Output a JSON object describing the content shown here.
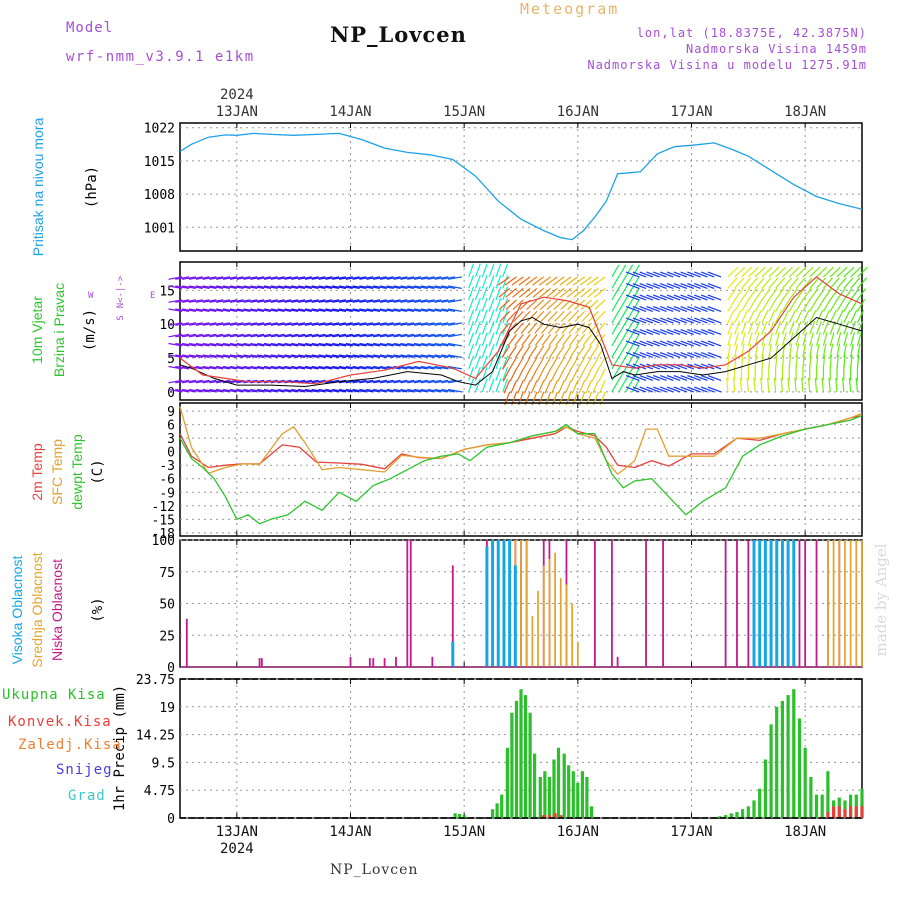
{
  "header": {
    "model_label": "Model",
    "model_name": "wrf-nmm_v3.9.1 e1km",
    "title": "NP_Lovcen",
    "meteogram_label": "Meteogram",
    "lonlat": "lon,lat (18.8375E, 42.3875N)",
    "altitude": "Nadmorska Visina 1459m",
    "model_altitude": "Nadmorska Visina u modelu 1275.91m",
    "bottom_title": "NP_Lovcen",
    "watermark": "made by Angel"
  },
  "colors": {
    "pressure": "#1ea1e8",
    "temp2m": "#e8403a",
    "sfc_temp": "#e0a030",
    "dewpt": "#2ec52e",
    "cloud_high": "#16a6e8",
    "cloud_mid": "#e3a531",
    "cloud_low": "#c21a8a",
    "precip_total": "#2cbf2c",
    "precip_conv": "#e8403a",
    "precip_frz": "#f08030",
    "snow": "#4a3fe0",
    "hail": "#3cc7c7",
    "label_purple": "#a64fd6"
  },
  "chart_data": [
    {
      "type": "line",
      "panel": "pressure",
      "title": "",
      "ylabel_lines": [
        "Pritisak na nivou mora",
        "(hPa)"
      ],
      "unit": "hPa",
      "yticks": [
        1001,
        1008,
        1015,
        1022
      ],
      "ylim": [
        996,
        1023
      ],
      "x_labels_top": [
        "13JAN",
        "14JAN",
        "15JAN",
        "16JAN",
        "17JAN",
        "18JAN"
      ],
      "x_year_top": "2024",
      "x_range_days": [
        12.5,
        18.5
      ],
      "series": [
        {
          "color_key": "pressure",
          "x": [
            12.5,
            12.6,
            12.75,
            12.9,
            13.0,
            13.15,
            13.3,
            13.5,
            13.7,
            13.9,
            14.1,
            14.3,
            14.5,
            14.7,
            14.9,
            15.1,
            15.3,
            15.5,
            15.7,
            15.85,
            15.95,
            16.05,
            16.15,
            16.25,
            16.35,
            16.45,
            16.55,
            16.7,
            16.85,
            17.0,
            17.2,
            17.35,
            17.5,
            17.7,
            17.9,
            18.1,
            18.3,
            18.5
          ],
          "values": [
            1017,
            1018.5,
            1020,
            1020.5,
            1020.4,
            1020.8,
            1020.6,
            1020.4,
            1020.6,
            1020.8,
            1019.5,
            1017.7,
            1016.8,
            1016.3,
            1015.3,
            1011.8,
            1006.5,
            1002.7,
            1000.3,
            998.8,
            998.4,
            1000.3,
            1003.2,
            1006.5,
            1012.3,
            1012.5,
            1012.7,
            1016.5,
            1018,
            1018.3,
            1018.8,
            1017.5,
            1016,
            1013,
            1010,
            1007.5,
            1006,
            1004.8
          ]
        }
      ]
    },
    {
      "type": "line",
      "panel": "wind",
      "title": "",
      "ylabel_lines": [
        "10m Vjetar",
        "Brzina i Pravac",
        "(m/s)"
      ],
      "direction_labels": [
        "N",
        "<",
        "-",
        "|",
        "-",
        ">",
        "W",
        "E",
        "S"
      ],
      "unit": "m/s",
      "yticks": [
        0,
        5,
        10,
        15
      ],
      "ylim": [
        -1.2,
        19.2
      ],
      "series": [
        {
          "name": "speed",
          "color": "#000000",
          "x": [
            12.5,
            12.6,
            12.8,
            13.0,
            13.3,
            13.6,
            13.9,
            14.2,
            14.5,
            14.8,
            14.95,
            15.1,
            15.25,
            15.4,
            15.5,
            15.6,
            15.7,
            15.85,
            16.0,
            16.1,
            16.2,
            16.3,
            16.4,
            16.5,
            16.7,
            16.9,
            17.1,
            17.3,
            17.5,
            17.7,
            17.9,
            18.1,
            18.3,
            18.5
          ],
          "values": [
            4,
            3.5,
            2,
            1,
            1,
            0.8,
            1.5,
            2,
            3,
            2.5,
            1.5,
            1,
            3,
            9,
            10.5,
            11,
            10,
            9.5,
            10,
            9.5,
            7,
            2,
            3,
            2.5,
            3,
            3,
            2.5,
            3,
            4,
            5,
            8,
            11,
            10,
            9
          ]
        },
        {
          "name": "gust",
          "color": "#e8403a",
          "x": [
            12.5,
            12.7,
            12.9,
            13.1,
            13.4,
            13.7,
            14.0,
            14.3,
            14.6,
            14.9,
            15.1,
            15.3,
            15.5,
            15.7,
            15.9,
            16.1,
            16.3,
            16.5,
            16.7,
            16.9,
            17.1,
            17.3,
            17.5,
            17.7,
            17.9,
            18.1,
            18.3,
            18.5
          ],
          "values": [
            5,
            2.5,
            2,
            1.5,
            1.5,
            1.2,
            2.5,
            3.2,
            4.5,
            3.5,
            2,
            6,
            13,
            14,
            13.5,
            12.5,
            4,
            3.5,
            4,
            4,
            3.5,
            4,
            6,
            9,
            14,
            17,
            14.5,
            13
          ]
        }
      ]
    },
    {
      "type": "line",
      "panel": "temperature",
      "title": "",
      "ylabel_lines": [
        "2m Temp",
        "SFC Temp",
        "dewpt Temp",
        "(C)"
      ],
      "unit": "C",
      "yticks": [
        -18,
        -15,
        -12,
        -9,
        -6,
        -3,
        0,
        3,
        6,
        9
      ],
      "ylim": [
        -18.7,
        10.8
      ],
      "series": [
        {
          "name": "2m Temp",
          "color_key": "temp2m",
          "x": [
            12.5,
            12.6,
            12.75,
            12.9,
            13.05,
            13.2,
            13.4,
            13.55,
            13.7,
            13.9,
            14.1,
            14.3,
            14.45,
            14.6,
            14.8,
            15.0,
            15.2,
            15.4,
            15.6,
            15.8,
            15.9,
            16.0,
            16.15,
            16.25,
            16.35,
            16.5,
            16.65,
            16.8,
            17.0,
            17.2,
            17.4,
            17.6,
            17.8,
            18.0,
            18.2,
            18.4,
            18.5
          ],
          "values": [
            4,
            -1,
            -3.5,
            -3,
            -2.7,
            -2.7,
            1.5,
            1,
            -2.3,
            -2.5,
            -2.8,
            -3.8,
            -0.5,
            -1.3,
            -1.5,
            0.5,
            1.5,
            2,
            3,
            4,
            5.5,
            4.5,
            3.5,
            1,
            -3,
            -3.5,
            -2,
            -3.2,
            -0.5,
            -0.5,
            3,
            2.5,
            4,
            5,
            6,
            7.5,
            8
          ]
        },
        {
          "name": "SFC Temp",
          "color_key": "sfc_temp",
          "x": [
            12.5,
            12.6,
            12.75,
            12.9,
            13.05,
            13.2,
            13.4,
            13.5,
            13.6,
            13.75,
            13.9,
            14.1,
            14.3,
            14.45,
            14.6,
            14.8,
            15.0,
            15.2,
            15.4,
            15.6,
            15.8,
            15.9,
            16.0,
            16.15,
            16.25,
            16.35,
            16.5,
            16.6,
            16.7,
            16.8,
            17.0,
            17.2,
            17.4,
            17.6,
            17.8,
            18.0,
            18.2,
            18.4,
            18.5
          ],
          "values": [
            10,
            1,
            -4.8,
            -3.5,
            -2.7,
            -2.8,
            4,
            5.5,
            2,
            -4,
            -3.5,
            -4,
            -4.5,
            -0.8,
            -1.2,
            -1.5,
            0.5,
            1.5,
            2,
            3.5,
            4.5,
            5.5,
            4,
            3,
            -2,
            -5,
            -2,
            5,
            5,
            -1,
            -1,
            -1,
            3,
            3,
            4,
            5,
            6,
            7.5,
            8.5
          ]
        },
        {
          "name": "dewpt Temp",
          "color_key": "dewpt",
          "x": [
            12.5,
            12.6,
            12.7,
            12.8,
            12.9,
            13.0,
            13.1,
            13.2,
            13.3,
            13.45,
            13.6,
            13.75,
            13.9,
            14.05,
            14.2,
            14.35,
            14.5,
            14.65,
            14.8,
            14.95,
            15.05,
            15.2,
            15.4,
            15.6,
            15.8,
            15.9,
            16.0,
            16.15,
            16.3,
            16.4,
            16.5,
            16.65,
            16.8,
            16.95,
            17.1,
            17.3,
            17.45,
            17.6,
            17.8,
            18.0,
            18.2,
            18.4,
            18.5
          ],
          "values": [
            3,
            -1.5,
            -3.5,
            -6,
            -10,
            -15,
            -14,
            -16,
            -15,
            -14,
            -11,
            -13,
            -9,
            -11,
            -7.5,
            -6,
            -4,
            -2,
            -1,
            -0.5,
            -2,
            1,
            2,
            3.5,
            4.5,
            6,
            4,
            4,
            -5,
            -8,
            -6.5,
            -6,
            -10,
            -14,
            -11,
            -8,
            -1,
            1.5,
            3.5,
            5,
            6,
            7,
            8
          ]
        }
      ]
    },
    {
      "type": "bar",
      "panel": "cloud",
      "title": "",
      "ylabel_lines": [
        "Visoka Oblacnost",
        "Srednja Oblacnost",
        "Niska Oblacnost",
        "(%)"
      ],
      "unit": "%",
      "yticks": [
        0,
        25,
        50,
        75,
        100
      ],
      "ylim": [
        0,
        100
      ],
      "series": [
        {
          "name": "Niska Oblacnost",
          "color_key": "cloud_low",
          "x": [
            12.56,
            13.2,
            13.22,
            14.0,
            14.17,
            14.2,
            14.3,
            14.4,
            14.5,
            14.53,
            14.72,
            14.9,
            15.2,
            15.25,
            15.3,
            15.35,
            15.45,
            15.5,
            15.55,
            15.7,
            15.75,
            15.9,
            16.15,
            16.3,
            16.35,
            16.6,
            16.75,
            17.3,
            17.4,
            17.5,
            17.55,
            17.65,
            17.7,
            17.8,
            17.9,
            17.95,
            18.0,
            18.1,
            18.2,
            18.3
          ],
          "values": [
            38,
            7,
            7,
            8,
            7,
            7,
            7,
            8,
            100,
            100,
            8,
            80,
            100,
            100,
            100,
            100,
            100,
            100,
            100,
            100,
            100,
            100,
            100,
            100,
            8,
            100,
            100,
            100,
            100,
            100,
            100,
            100,
            100,
            100,
            100,
            100,
            100,
            100,
            100,
            100
          ]
        },
        {
          "name": "Srednja Oblacnost",
          "color_key": "cloud_mid",
          "x": [
            15.25,
            15.3,
            15.35,
            15.4,
            15.45,
            15.5,
            15.55,
            15.6,
            15.65,
            15.7,
            15.75,
            15.8,
            15.85,
            15.9,
            15.95,
            16.0,
            18.2,
            18.25,
            18.3,
            18.35,
            18.4,
            18.45,
            18.5
          ],
          "values": [
            100,
            100,
            100,
            100,
            100,
            100,
            100,
            40,
            60,
            80,
            85,
            90,
            70,
            65,
            50,
            20,
            100,
            100,
            100,
            100,
            100,
            100,
            100
          ]
        },
        {
          "name": "Visoka Oblacnost",
          "color_key": "cloud_high",
          "x": [
            14.9,
            15.2,
            15.25,
            15.3,
            15.35,
            15.4,
            15.45,
            17.55,
            17.6,
            17.65,
            17.7,
            17.75,
            17.8,
            17.85,
            17.9
          ],
          "values": [
            20,
            95,
            100,
            100,
            100,
            100,
            80,
            100,
            100,
            100,
            100,
            100,
            100,
            100,
            100
          ]
        }
      ]
    },
    {
      "type": "bar",
      "panel": "precip",
      "title": "",
      "ylabel_lines": [
        "1hr Precip (mm)"
      ],
      "legend": [
        "Ukupna Kisa",
        "Konvek.Kisa",
        "Zaledj.Kisa",
        "Snijeg",
        "Grad"
      ],
      "unit": "mm",
      "yticks": [
        0,
        4.75,
        9.5,
        14.25,
        19,
        23.75
      ],
      "ylim": [
        0,
        23.75
      ],
      "x_labels_bottom": [
        "13JAN",
        "14JAN",
        "15JAN",
        "16JAN",
        "17JAN",
        "18JAN"
      ],
      "x_year_bottom": "2024",
      "series": [
        {
          "name": "Ukupna Kisa",
          "color_key": "precip_total",
          "x": [
            14.92,
            14.96,
            15.0,
            15.25,
            15.29,
            15.33,
            15.38,
            15.42,
            15.46,
            15.5,
            15.54,
            15.58,
            15.62,
            15.67,
            15.71,
            15.75,
            15.79,
            15.83,
            15.88,
            15.92,
            15.96,
            16.0,
            16.04,
            16.08,
            16.12,
            17.25,
            17.3,
            17.35,
            17.4,
            17.45,
            17.5,
            17.55,
            17.6,
            17.65,
            17.7,
            17.75,
            17.8,
            17.85,
            17.9,
            17.95,
            18.0,
            18.05,
            18.1,
            18.15,
            18.2,
            18.25,
            18.3,
            18.35,
            18.4,
            18.45,
            18.5
          ],
          "values": [
            0.8,
            0.7,
            0.5,
            1.5,
            2.5,
            4,
            12,
            18,
            20,
            22,
            21,
            18,
            11,
            7,
            8,
            7,
            10,
            12,
            11,
            9,
            8,
            6,
            8,
            7,
            2,
            0.3,
            0.5,
            0.8,
            1,
            1.5,
            2,
            3,
            5,
            10,
            16,
            19,
            20,
            21,
            22,
            17,
            12,
            7,
            4,
            4,
            8,
            3,
            3.5,
            3,
            4,
            4,
            5
          ]
        },
        {
          "name": "Konvek.Kisa",
          "color_key": "precip_conv",
          "x": [
            15.7,
            15.75,
            15.8,
            15.85,
            18.2,
            18.25,
            18.3,
            18.35,
            18.4,
            18.45,
            18.5
          ],
          "values": [
            0.5,
            0.5,
            0.8,
            0.5,
            1,
            2,
            2,
            1.5,
            2,
            2,
            2
          ]
        }
      ],
      "y_axis_title": "1hr Precip (mm)"
    }
  ]
}
